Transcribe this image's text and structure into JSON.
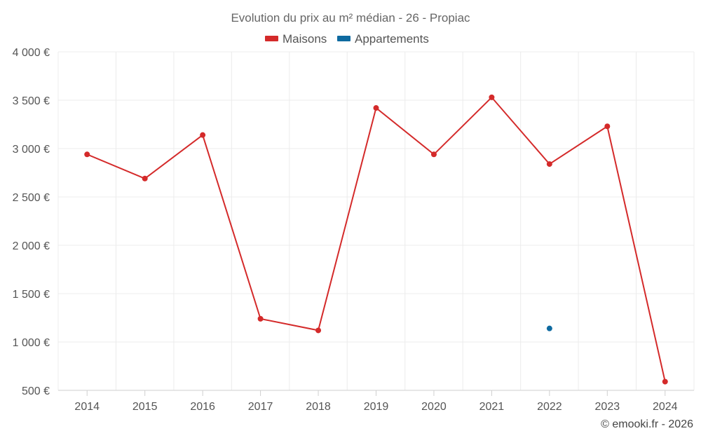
{
  "chart_data": {
    "type": "line",
    "title": "Evolution du prix au m² médian - 26 - Propiac",
    "categories": [
      "2014",
      "2015",
      "2016",
      "2017",
      "2018",
      "2019",
      "2020",
      "2021",
      "2022",
      "2023",
      "2024"
    ],
    "series": [
      {
        "name": "Maisons",
        "color": "#d42a2a",
        "values": [
          2940,
          2690,
          3140,
          1240,
          1120,
          3420,
          2940,
          3530,
          2840,
          3230,
          590
        ]
      },
      {
        "name": "Appartements",
        "color": "#0e6aa0",
        "values": [
          null,
          null,
          null,
          null,
          null,
          null,
          null,
          null,
          1140,
          null,
          null
        ]
      }
    ],
    "ylim": [
      500,
      4000
    ],
    "yticks": [
      500,
      1000,
      1500,
      2000,
      2500,
      3000,
      3500,
      4000
    ],
    "ytick_labels": [
      "500 €",
      "1 000 €",
      "1 500 €",
      "2 000 €",
      "2 500 €",
      "3 000 €",
      "3 500 €",
      "4 000 €"
    ],
    "xlabel": "",
    "ylabel": "",
    "grid": true,
    "legend_position": "top-center"
  },
  "credit": "© emooki.fr - 2026"
}
